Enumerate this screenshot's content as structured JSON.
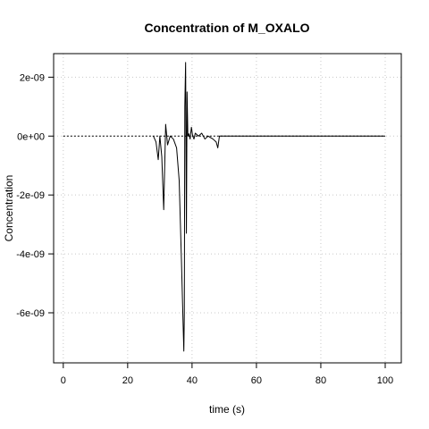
{
  "chart_data": {
    "type": "line",
    "title": "Concentration of M_OXALO",
    "xlabel": "time (s)",
    "ylabel": "Concentration",
    "xlim": [
      -3,
      105
    ],
    "ylim": [
      -7.7e-09,
      2.8e-09
    ],
    "x_ticks": [
      0,
      20,
      40,
      60,
      80,
      100
    ],
    "x_tick_labels": [
      "0",
      "20",
      "40",
      "60",
      "80",
      "100"
    ],
    "y_ticks": [
      2e-09,
      0,
      -2e-09,
      -4e-09,
      -6e-09
    ],
    "y_tick_labels": [
      "2e-09",
      "0e+00",
      "-2e-09",
      "-4e-09",
      "-6e-09"
    ],
    "grid": true,
    "series": [
      {
        "style": "dotted",
        "x": [
          0,
          28,
          100
        ],
        "y": [
          0,
          0,
          0
        ]
      },
      {
        "style": "solid",
        "x": [
          28,
          28.8,
          29.5,
          30.0,
          30.6,
          31.2,
          31.8,
          32.4,
          33.2,
          34.2,
          35.2,
          36.0,
          36.7,
          37.2,
          37.45,
          37.6,
          37.75,
          38.0,
          38.25,
          38.45,
          38.7,
          39.0,
          39.4,
          39.8,
          40.2,
          40.6,
          41.0,
          42.0,
          43.0,
          44.0,
          45.0,
          46.5,
          47.5,
          48.0,
          48.5,
          49.5,
          100
        ],
        "y": [
          0,
          -2e-10,
          -8e-10,
          0,
          -7e-10,
          -2.5e-09,
          4e-10,
          -3e-10,
          0,
          -1e-10,
          -4e-10,
          -1.5e-09,
          -4.2e-09,
          -6.3e-09,
          -7.3e-09,
          -6e-09,
          1e-09,
          2.5e-09,
          -3.3e-09,
          1.5e-09,
          0,
          8e-11,
          -1e-10,
          3e-10,
          0,
          -1e-10,
          1e-10,
          0,
          1e-10,
          -1e-10,
          0,
          -1e-10,
          -2e-10,
          -4e-10,
          0,
          0,
          0
        ]
      }
    ]
  }
}
